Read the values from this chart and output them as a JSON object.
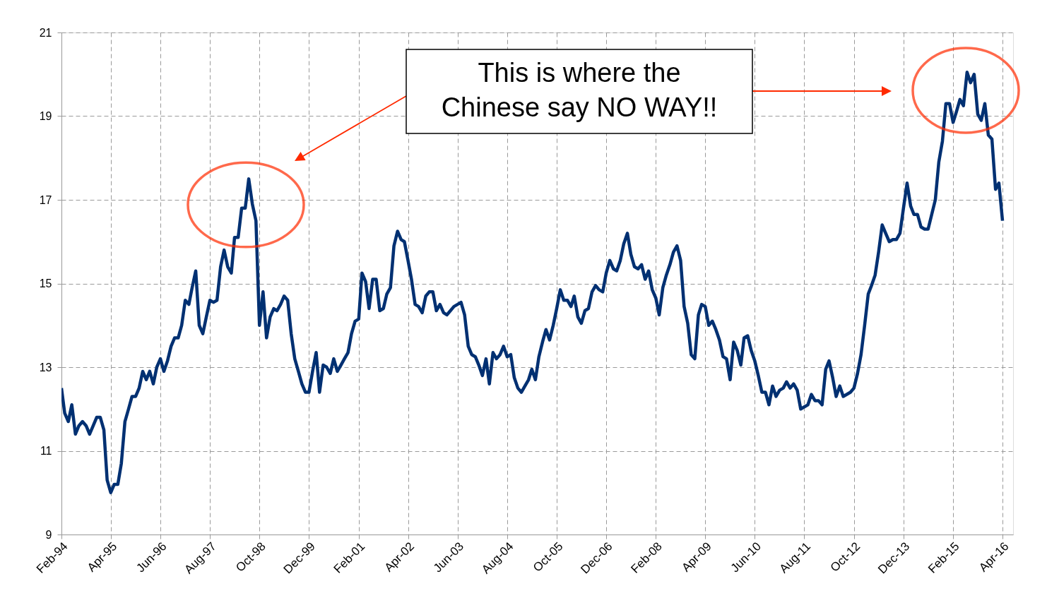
{
  "chart_data": {
    "type": "line",
    "annotations": [
      "This is where the\nChinese say NO WAY!!"
    ],
    "xlim": [
      "1994-02",
      "2016-07"
    ],
    "xticks": [
      {
        "value": "1994-02",
        "label": "Feb-94"
      },
      {
        "value": "1995-04",
        "label": "Apr-95"
      },
      {
        "value": "1996-06",
        "label": "Jun-96"
      },
      {
        "value": "1997-08",
        "label": "Aug-97"
      },
      {
        "value": "1998-10",
        "label": "Oct-98"
      },
      {
        "value": "1999-12",
        "label": "Dec-99"
      },
      {
        "value": "2001-02",
        "label": "Feb-01"
      },
      {
        "value": "2002-04",
        "label": "Apr-02"
      },
      {
        "value": "2003-06",
        "label": "Jun-03"
      },
      {
        "value": "2004-08",
        "label": "Aug-04"
      },
      {
        "value": "2005-10",
        "label": "Oct-05"
      },
      {
        "value": "2006-12",
        "label": "Dec-06"
      },
      {
        "value": "2008-02",
        "label": "Feb-08"
      },
      {
        "value": "2009-04",
        "label": "Apr-09"
      },
      {
        "value": "2010-06",
        "label": "Jun-10"
      },
      {
        "value": "2011-08",
        "label": "Aug-11"
      },
      {
        "value": "2012-10",
        "label": "Oct-12"
      },
      {
        "value": "2013-12",
        "label": "Dec-13"
      },
      {
        "value": "2015-02",
        "label": "Feb-15"
      },
      {
        "value": "2016-04",
        "label": "Apr-16"
      }
    ],
    "ylim": [
      9,
      21
    ],
    "yticks": [
      9,
      11,
      13,
      15,
      17,
      19,
      21
    ],
    "grid": true,
    "legend": false,
    "marker": "none",
    "line_style": "solid",
    "x": [
      "1994-02",
      "1994-03",
      "1994-04",
      "1994-05",
      "1994-06",
      "1994-07",
      "1994-08",
      "1994-09",
      "1994-10",
      "1994-11",
      "1994-12",
      "1995-01",
      "1995-02",
      "1995-03",
      "1995-04",
      "1995-05",
      "1995-06",
      "1995-07",
      "1995-08",
      "1995-09",
      "1995-10",
      "1995-11",
      "1995-12",
      "1996-01",
      "1996-02",
      "1996-03",
      "1996-04",
      "1996-05",
      "1996-06",
      "1996-07",
      "1996-08",
      "1996-09",
      "1996-10",
      "1996-11",
      "1996-12",
      "1997-01",
      "1997-02",
      "1997-03",
      "1997-04",
      "1997-05",
      "1997-06",
      "1997-07",
      "1997-08",
      "1997-09",
      "1997-10",
      "1997-11",
      "1997-12",
      "1998-01",
      "1998-02",
      "1998-03",
      "1998-04",
      "1998-05",
      "1998-06",
      "1998-07",
      "1998-08",
      "1998-09",
      "1998-10",
      "1998-11",
      "1998-12",
      "1999-01",
      "1999-02",
      "1999-03",
      "1999-04",
      "1999-05",
      "1999-06",
      "1999-07",
      "1999-08",
      "1999-09",
      "1999-10",
      "1999-11",
      "1999-12",
      "2000-01",
      "2000-02",
      "2000-03",
      "2000-04",
      "2000-05",
      "2000-06",
      "2000-07",
      "2000-08",
      "2000-09",
      "2000-10",
      "2000-11",
      "2000-12",
      "2001-01",
      "2001-02",
      "2001-03",
      "2001-04",
      "2001-05",
      "2001-06",
      "2001-07",
      "2001-08",
      "2001-09",
      "2001-10",
      "2001-11",
      "2001-12",
      "2002-01",
      "2002-02",
      "2002-03",
      "2002-04",
      "2002-05",
      "2002-06",
      "2002-07",
      "2002-08",
      "2002-09",
      "2002-10",
      "2002-11",
      "2002-12",
      "2003-01",
      "2003-02",
      "2003-03",
      "2003-04",
      "2003-05",
      "2003-06",
      "2003-07",
      "2003-08",
      "2003-09",
      "2003-10",
      "2003-11",
      "2003-12",
      "2004-01",
      "2004-02",
      "2004-03",
      "2004-04",
      "2004-05",
      "2004-06",
      "2004-07",
      "2004-08",
      "2004-09",
      "2004-10",
      "2004-11",
      "2004-12",
      "2005-01",
      "2005-02",
      "2005-03",
      "2005-04",
      "2005-05",
      "2005-06",
      "2005-07",
      "2005-08",
      "2005-09",
      "2005-10",
      "2005-11",
      "2005-12",
      "2006-01",
      "2006-02",
      "2006-03",
      "2006-04",
      "2006-05",
      "2006-06",
      "2006-07",
      "2006-08",
      "2006-09",
      "2006-10",
      "2006-11",
      "2006-12",
      "2007-01",
      "2007-02",
      "2007-03",
      "2007-04",
      "2007-05",
      "2007-06",
      "2007-07",
      "2007-08",
      "2007-09",
      "2007-10",
      "2007-11",
      "2007-12",
      "2008-01",
      "2008-02",
      "2008-03",
      "2008-04",
      "2008-05",
      "2008-06",
      "2008-07",
      "2008-08",
      "2008-09",
      "2008-10",
      "2008-11",
      "2008-12",
      "2009-01",
      "2009-02",
      "2009-03",
      "2009-04",
      "2009-05",
      "2009-06",
      "2009-07",
      "2009-08",
      "2009-09",
      "2009-10",
      "2009-11",
      "2009-12",
      "2010-01",
      "2010-02",
      "2010-03",
      "2010-04",
      "2010-05",
      "2010-06",
      "2010-07",
      "2010-08",
      "2010-09",
      "2010-10",
      "2010-11",
      "2010-12",
      "2011-01",
      "2011-02",
      "2011-03",
      "2011-04",
      "2011-05",
      "2011-06",
      "2011-07",
      "2011-08",
      "2011-09",
      "2011-10",
      "2011-11",
      "2011-12",
      "2012-01",
      "2012-02",
      "2012-03",
      "2012-04",
      "2012-05",
      "2012-06",
      "2012-07",
      "2012-08",
      "2012-09",
      "2012-10",
      "2012-11",
      "2012-12",
      "2013-01",
      "2013-02",
      "2013-03",
      "2013-04",
      "2013-05",
      "2013-06",
      "2013-07",
      "2013-08",
      "2013-09",
      "2013-10",
      "2013-11",
      "2013-12",
      "2014-01",
      "2014-02",
      "2014-03",
      "2014-04",
      "2014-05",
      "2014-06",
      "2014-07",
      "2014-08",
      "2014-09",
      "2014-10",
      "2014-11",
      "2014-12",
      "2015-01",
      "2015-02",
      "2015-03",
      "2015-04",
      "2015-05",
      "2015-06",
      "2015-07",
      "2015-08",
      "2015-09",
      "2015-10",
      "2015-11",
      "2015-12",
      "2016-01",
      "2016-02",
      "2016-03",
      "2016-04"
    ],
    "series": [
      {
        "color": "#003072",
        "values": [
          12.5,
          11.9,
          11.7,
          12.1,
          11.4,
          11.6,
          11.7,
          11.6,
          11.4,
          11.6,
          11.8,
          11.8,
          11.5,
          10.3,
          10.0,
          10.2,
          10.2,
          10.7,
          11.7,
          12.0,
          12.3,
          12.3,
          12.5,
          12.9,
          12.7,
          12.9,
          12.6,
          13.0,
          13.2,
          12.9,
          13.15,
          13.5,
          13.7,
          13.7,
          14.0,
          14.6,
          14.5,
          14.9,
          15.3,
          14.0,
          13.8,
          14.2,
          14.6,
          14.55,
          14.6,
          15.4,
          15.8,
          15.4,
          15.25,
          16.1,
          16.1,
          16.8,
          16.8,
          17.5,
          16.9,
          16.5,
          14.0,
          14.8,
          13.7,
          14.2,
          14.4,
          14.35,
          14.5,
          14.7,
          14.6,
          13.8,
          13.2,
          12.9,
          12.6,
          12.4,
          12.4,
          12.9,
          13.35,
          12.4,
          13.05,
          13.0,
          12.85,
          13.2,
          12.9,
          13.05,
          13.2,
          13.35,
          13.8,
          14.1,
          14.15,
          15.25,
          15.05,
          14.4,
          15.1,
          15.1,
          14.35,
          14.4,
          14.75,
          14.9,
          15.9,
          16.25,
          16.05,
          16.0,
          15.55,
          15.1,
          14.5,
          14.45,
          14.3,
          14.7,
          14.8,
          14.8,
          14.35,
          14.5,
          14.3,
          14.25,
          14.35,
          14.45,
          14.5,
          14.55,
          14.25,
          13.5,
          13.3,
          13.25,
          13.05,
          12.8,
          13.2,
          12.6,
          13.35,
          13.2,
          13.3,
          13.5,
          13.25,
          13.3,
          12.75,
          12.5,
          12.4,
          12.55,
          12.7,
          12.95,
          12.7,
          13.25,
          13.6,
          13.9,
          13.65,
          14.0,
          14.4,
          14.85,
          14.6,
          14.6,
          14.45,
          14.7,
          14.2,
          14.05,
          14.35,
          14.4,
          14.8,
          14.95,
          14.85,
          14.8,
          15.25,
          15.55,
          15.35,
          15.3,
          15.55,
          15.95,
          16.2,
          15.7,
          15.4,
          15.35,
          15.45,
          15.1,
          15.3,
          14.85,
          14.65,
          14.25,
          14.9,
          15.2,
          15.45,
          15.75,
          15.9,
          15.55,
          14.45,
          14.05,
          13.3,
          13.2,
          14.25,
          14.5,
          14.45,
          14.0,
          14.1,
          13.9,
          13.65,
          13.25,
          13.2,
          12.7,
          13.6,
          13.4,
          13.05,
          13.7,
          13.75,
          13.4,
          13.15,
          12.8,
          12.4,
          12.4,
          12.1,
          12.55,
          12.3,
          12.45,
          12.5,
          12.65,
          12.5,
          12.6,
          12.45,
          12.0,
          12.05,
          12.1,
          12.35,
          12.2,
          12.2,
          12.1,
          12.95,
          13.15,
          12.75,
          12.3,
          12.55,
          12.3,
          12.35,
          12.4,
          12.5,
          12.85,
          13.3,
          14.0,
          14.75,
          14.95,
          15.2,
          15.75,
          16.4,
          16.2,
          16.0,
          16.05,
          16.05,
          16.2,
          16.8,
          17.4,
          16.85,
          16.65,
          16.65,
          16.35,
          16.3,
          16.3,
          16.65,
          17.0,
          17.9,
          18.4,
          19.3,
          19.3,
          18.85,
          19.1,
          19.4,
          19.25,
          20.05,
          19.8,
          20.0,
          19.05,
          18.9,
          19.3,
          18.55,
          18.45,
          17.25,
          17.4,
          16.5
        ]
      }
    ]
  }
}
